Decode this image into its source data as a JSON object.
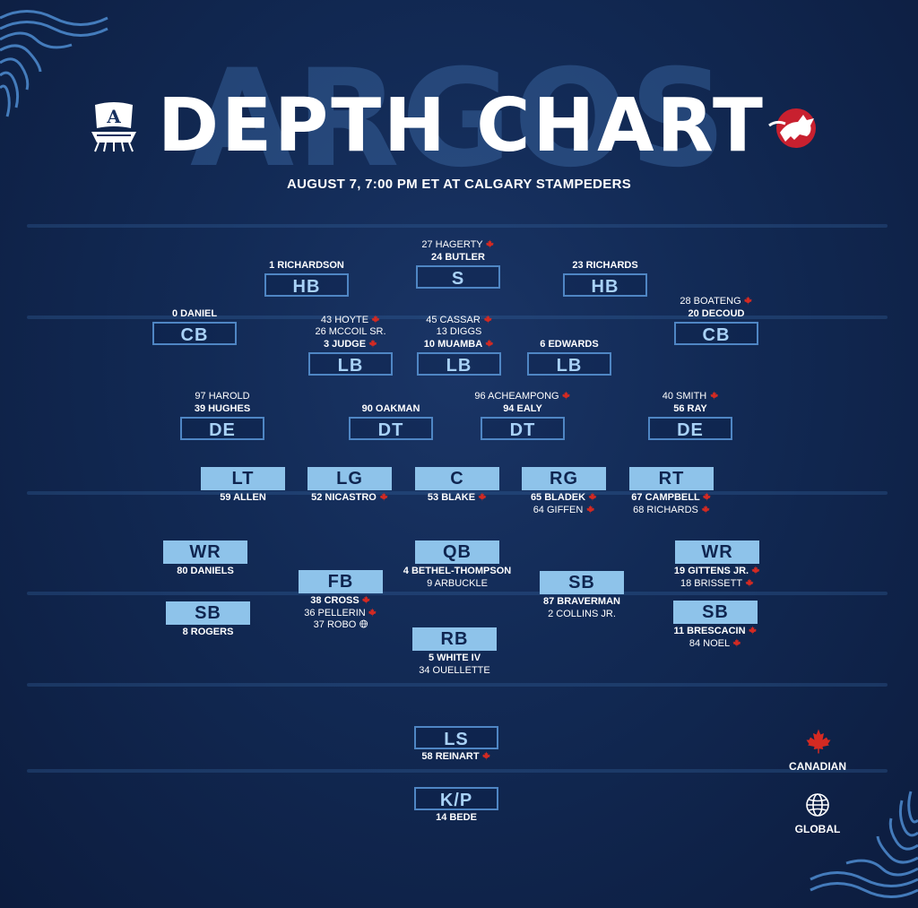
{
  "header": {
    "background_word": "ARGOS",
    "title": "DEPTH CHART",
    "subtitle": "AUGUST 7, 7:00 PM ET AT CALGARY STAMPEDERS"
  },
  "colors": {
    "background": "#122a55",
    "position_outline": "#4f86c4",
    "position_fill": "#8ec3ea",
    "canadian_leaf": "#d42a22"
  },
  "icons": {
    "canadian": "maple-leaf-icon",
    "global": "globe-icon"
  },
  "positions": [
    {
      "label": "HB",
      "style": "outline",
      "players": [
        {
          "text": "1 RICHARDSON",
          "bold": true,
          "flag": ""
        }
      ]
    },
    {
      "label": "S",
      "style": "outline",
      "players": [
        {
          "text": "27 HAGERTY",
          "bold": false,
          "flag": "canadian"
        },
        {
          "text": "24 BUTLER",
          "bold": true,
          "flag": ""
        }
      ]
    },
    {
      "label": "HB",
      "style": "outline",
      "players": [
        {
          "text": "23 RICHARDS",
          "bold": true,
          "flag": ""
        }
      ]
    },
    {
      "label": "CB",
      "style": "outline",
      "players": [
        {
          "text": "0 DANIEL",
          "bold": true,
          "flag": ""
        }
      ]
    },
    {
      "label": "LB",
      "style": "outline",
      "players": [
        {
          "text": "43 HOYTE",
          "bold": false,
          "flag": "canadian"
        },
        {
          "text": "26 MCCOIL SR.",
          "bold": false,
          "flag": ""
        },
        {
          "text": "3 JUDGE",
          "bold": true,
          "flag": "canadian"
        }
      ]
    },
    {
      "label": "LB",
      "style": "outline",
      "players": [
        {
          "text": "45 CASSAR",
          "bold": false,
          "flag": "canadian"
        },
        {
          "text": "13 DIGGS",
          "bold": false,
          "flag": ""
        },
        {
          "text": "10 MUAMBA",
          "bold": true,
          "flag": "canadian"
        }
      ]
    },
    {
      "label": "LB",
      "style": "outline",
      "players": [
        {
          "text": "6 EDWARDS",
          "bold": true,
          "flag": ""
        }
      ]
    },
    {
      "label": "CB",
      "style": "outline",
      "players": [
        {
          "text": "28 BOATENG",
          "bold": false,
          "flag": "canadian"
        },
        {
          "text": "20 DECOUD",
          "bold": true,
          "flag": ""
        }
      ]
    },
    {
      "label": "DE",
      "style": "outline",
      "players": [
        {
          "text": "97 HAROLD",
          "bold": false,
          "flag": ""
        },
        {
          "text": "39 HUGHES",
          "bold": true,
          "flag": ""
        }
      ]
    },
    {
      "label": "DT",
      "style": "outline",
      "players": [
        {
          "text": "90 OAKMAN",
          "bold": true,
          "flag": ""
        }
      ]
    },
    {
      "label": "DT",
      "style": "outline",
      "players": [
        {
          "text": "96 ACHEAMPONG",
          "bold": false,
          "flag": "canadian"
        },
        {
          "text": "94 EALY",
          "bold": true,
          "flag": ""
        }
      ]
    },
    {
      "label": "DE",
      "style": "outline",
      "players": [
        {
          "text": "40 SMITH",
          "bold": false,
          "flag": "canadian"
        },
        {
          "text": "56 RAY",
          "bold": true,
          "flag": ""
        }
      ]
    },
    {
      "label": "LT",
      "style": "filled",
      "players": [
        {
          "text": "59 ALLEN",
          "bold": true,
          "flag": ""
        }
      ]
    },
    {
      "label": "LG",
      "style": "filled",
      "players": [
        {
          "text": "52 NICASTRO",
          "bold": true,
          "flag": "canadian"
        }
      ]
    },
    {
      "label": "C",
      "style": "filled",
      "players": [
        {
          "text": "53 BLAKE",
          "bold": true,
          "flag": "canadian"
        }
      ]
    },
    {
      "label": "RG",
      "style": "filled",
      "players": [
        {
          "text": "65 BLADEK",
          "bold": true,
          "flag": "canadian"
        },
        {
          "text": "64 GIFFEN",
          "bold": false,
          "flag": "canadian"
        }
      ]
    },
    {
      "label": "RT",
      "style": "filled",
      "players": [
        {
          "text": "67 CAMPBELL",
          "bold": true,
          "flag": "canadian"
        },
        {
          "text": "68 RICHARDS",
          "bold": false,
          "flag": "canadian"
        }
      ]
    },
    {
      "label": "WR",
      "style": "filled",
      "players": [
        {
          "text": "80 DANIELS",
          "bold": true,
          "flag": ""
        }
      ]
    },
    {
      "label": "QB",
      "style": "filled",
      "players": [
        {
          "text": "4 BETHEL-THOMPSON",
          "bold": true,
          "flag": ""
        },
        {
          "text": "9 ARBUCKLE",
          "bold": false,
          "flag": ""
        }
      ]
    },
    {
      "label": "WR",
      "style": "filled",
      "players": [
        {
          "text": "19 GITTENS JR.",
          "bold": true,
          "flag": "canadian"
        },
        {
          "text": "18 BRISSETT",
          "bold": false,
          "flag": "canadian"
        }
      ]
    },
    {
      "label": "FB",
      "style": "filled",
      "players": [
        {
          "text": "38 CROSS",
          "bold": true,
          "flag": "canadian"
        },
        {
          "text": "36 PELLERIN",
          "bold": false,
          "flag": "canadian"
        },
        {
          "text": "37 ROBO",
          "bold": false,
          "flag": "global"
        }
      ]
    },
    {
      "label": "SB",
      "style": "filled",
      "players": [
        {
          "text": "87 BRAVERMAN",
          "bold": true,
          "flag": ""
        },
        {
          "text": "2 COLLINS JR.",
          "bold": false,
          "flag": ""
        }
      ]
    },
    {
      "label": "SB",
      "style": "filled",
      "players": [
        {
          "text": "8 ROGERS",
          "bold": true,
          "flag": ""
        }
      ]
    },
    {
      "label": "SB",
      "style": "filled",
      "players": [
        {
          "text": "11 BRESCACIN",
          "bold": true,
          "flag": "canadian"
        },
        {
          "text": "84 NOEL",
          "bold": false,
          "flag": "canadian"
        }
      ]
    },
    {
      "label": "RB",
      "style": "filled",
      "players": [
        {
          "text": "5 WHITE IV",
          "bold": true,
          "flag": ""
        },
        {
          "text": "34 OUELLETTE",
          "bold": false,
          "flag": ""
        }
      ]
    },
    {
      "label": "LS",
      "style": "outline",
      "players": [
        {
          "text": "58 REINART",
          "bold": true,
          "flag": "canadian"
        }
      ]
    },
    {
      "label": "K/P",
      "style": "outline",
      "players": [
        {
          "text": "14 BEDE",
          "bold": true,
          "flag": ""
        }
      ]
    }
  ],
  "legend": {
    "canadian_label": "CANADIAN",
    "global_label": "GLOBAL"
  }
}
